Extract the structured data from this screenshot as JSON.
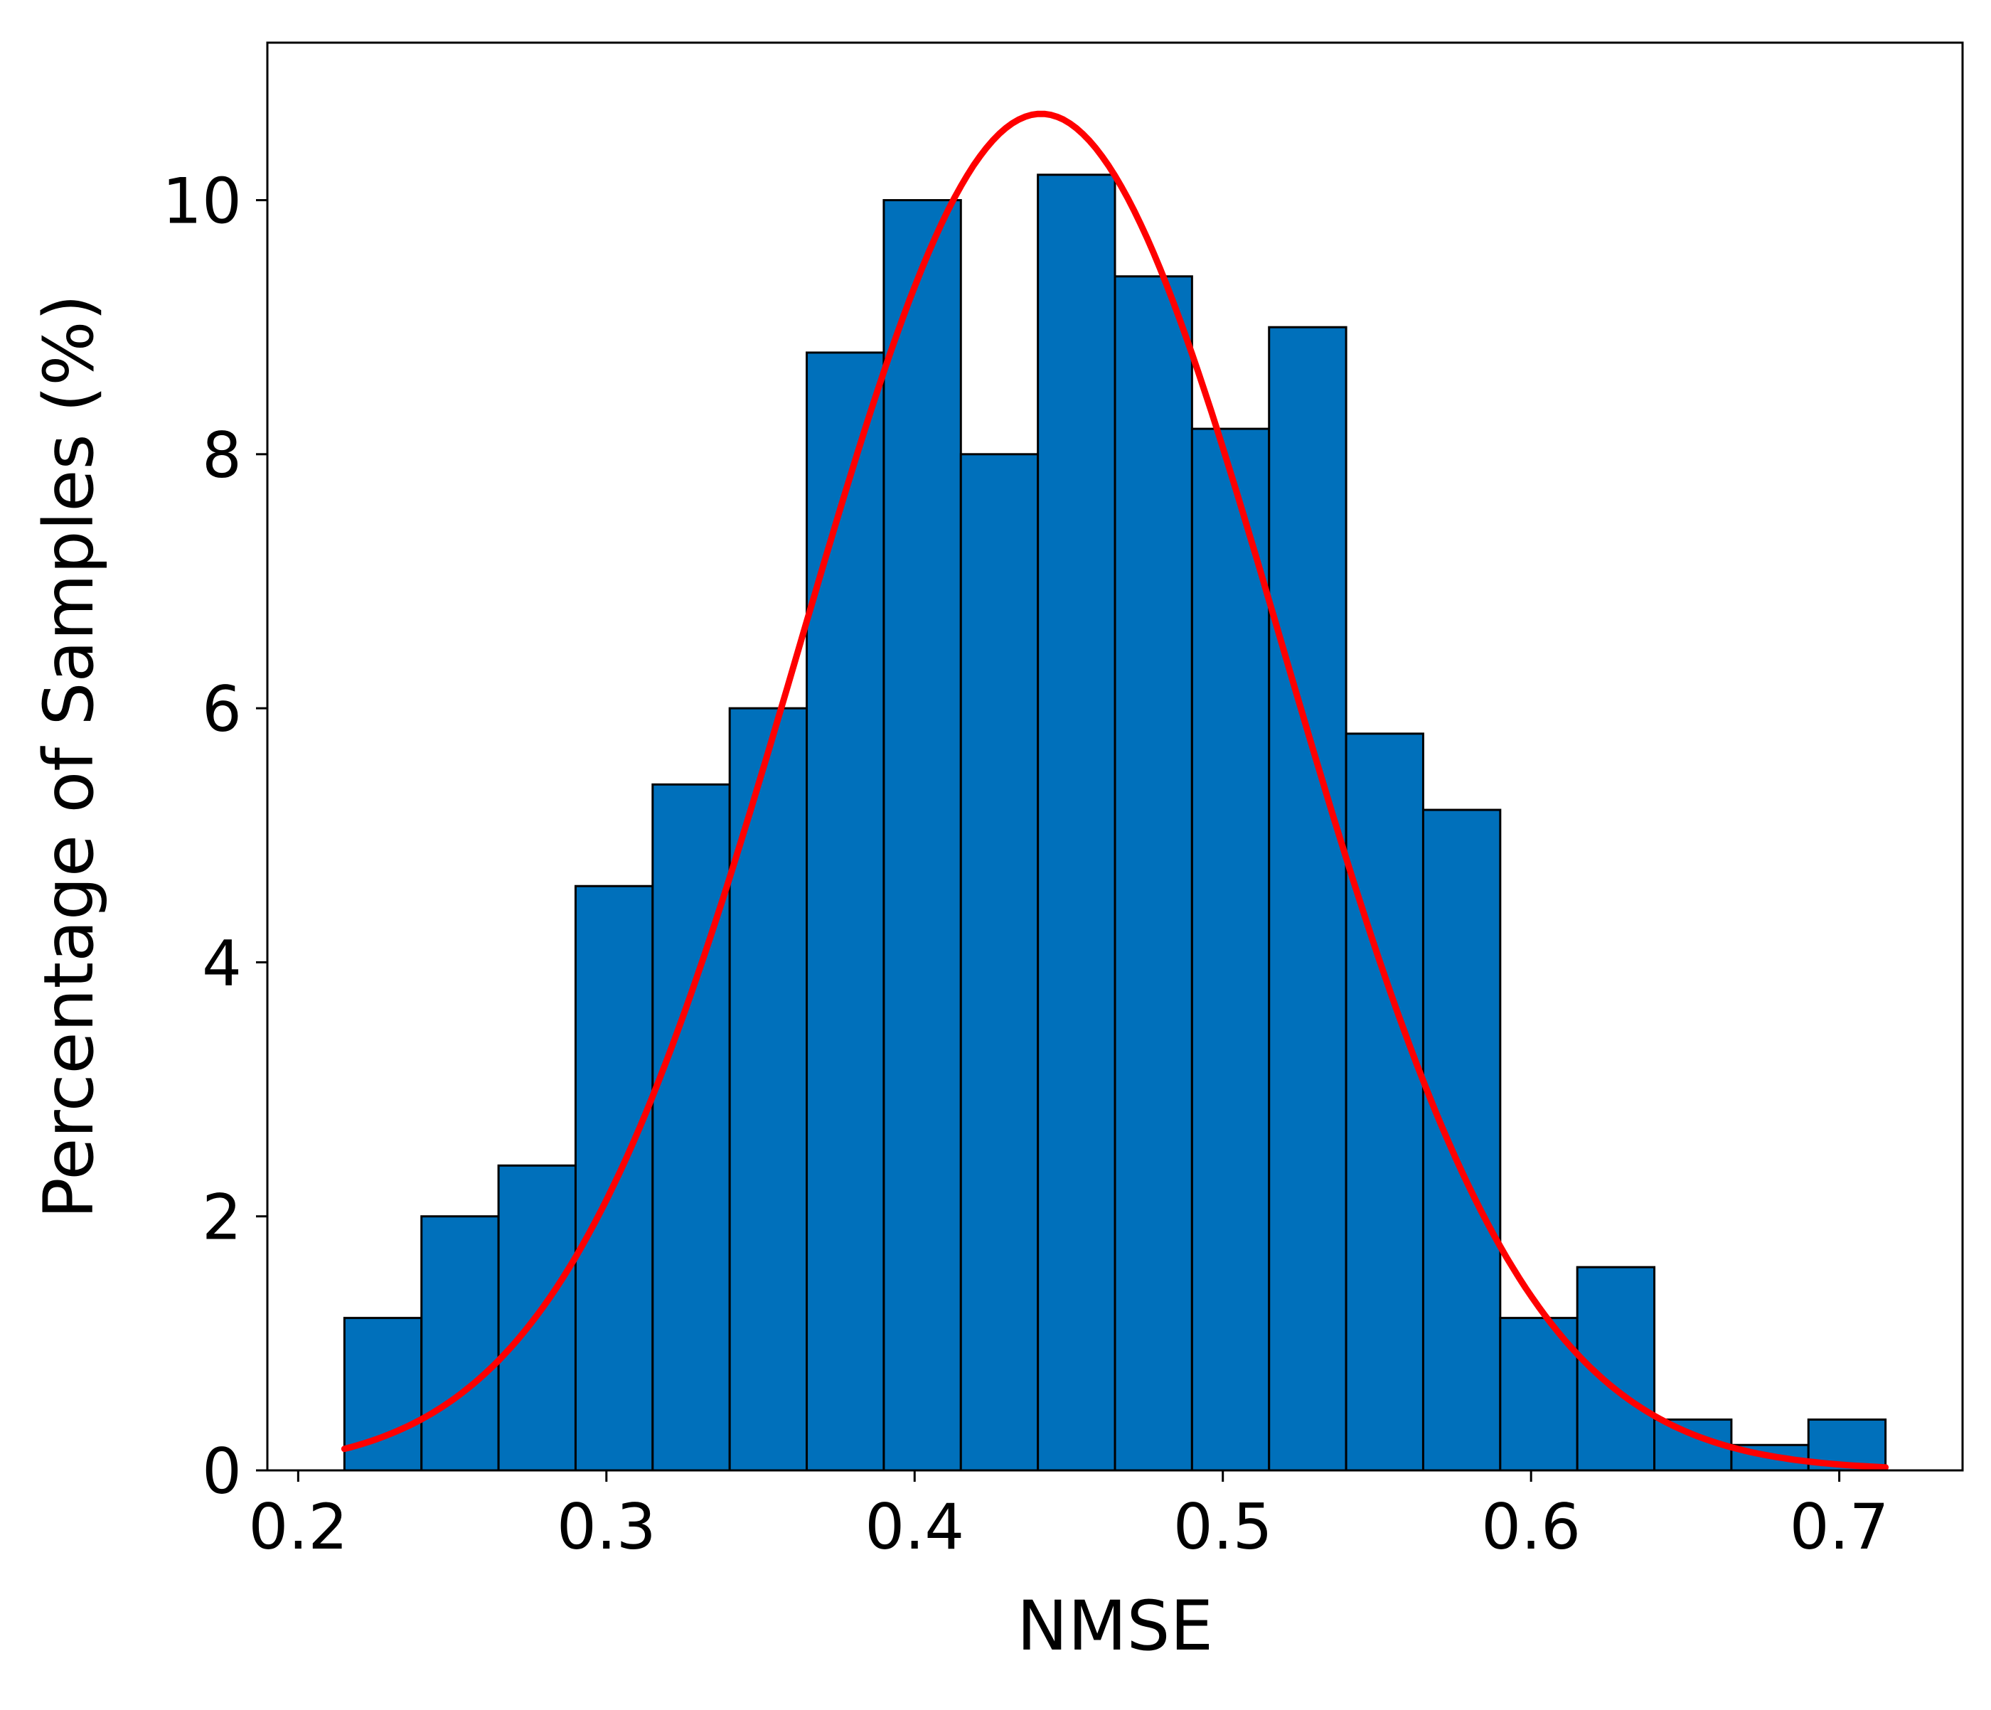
{
  "chart_data": {
    "type": "bar",
    "subtype": "histogram-with-fit",
    "title": "",
    "xlabel": "NMSE",
    "ylabel": "Percentage of Samples (%)",
    "xlim": [
      0.19,
      0.74
    ],
    "ylim": [
      0,
      11.24
    ],
    "xticks": [
      0.2,
      0.3,
      0.4,
      0.5,
      0.6,
      0.7
    ],
    "xtick_labels": [
      "0.2",
      "0.3",
      "0.4",
      "0.5",
      "0.6",
      "0.7"
    ],
    "yticks": [
      0,
      2,
      4,
      6,
      8,
      10
    ],
    "ytick_labels": [
      "0",
      "2",
      "4",
      "6",
      "8",
      "10"
    ],
    "grid": false,
    "bins": {
      "edges": [
        0.215,
        0.24,
        0.265,
        0.29,
        0.315,
        0.34,
        0.365,
        0.39,
        0.415,
        0.44,
        0.465,
        0.49,
        0.515,
        0.54,
        0.565,
        0.59,
        0.615,
        0.64,
        0.665,
        0.69,
        0.715
      ],
      "values": [
        1.2,
        2.0,
        2.4,
        4.6,
        5.4,
        6.0,
        8.8,
        10.0,
        8.0,
        10.2,
        9.4,
        8.2,
        9.0,
        5.8,
        5.2,
        1.2,
        1.6,
        0.4,
        0.2,
        0.4
      ]
    },
    "fit_curve": {
      "kind": "normal",
      "mean": 0.441,
      "std": 0.0785,
      "peak": 10.68,
      "x_range": [
        0.215,
        0.715
      ]
    },
    "colors": {
      "bar_fill": "#0070BB",
      "bar_edge": "#000000",
      "fit_line": "#FF0000"
    }
  }
}
